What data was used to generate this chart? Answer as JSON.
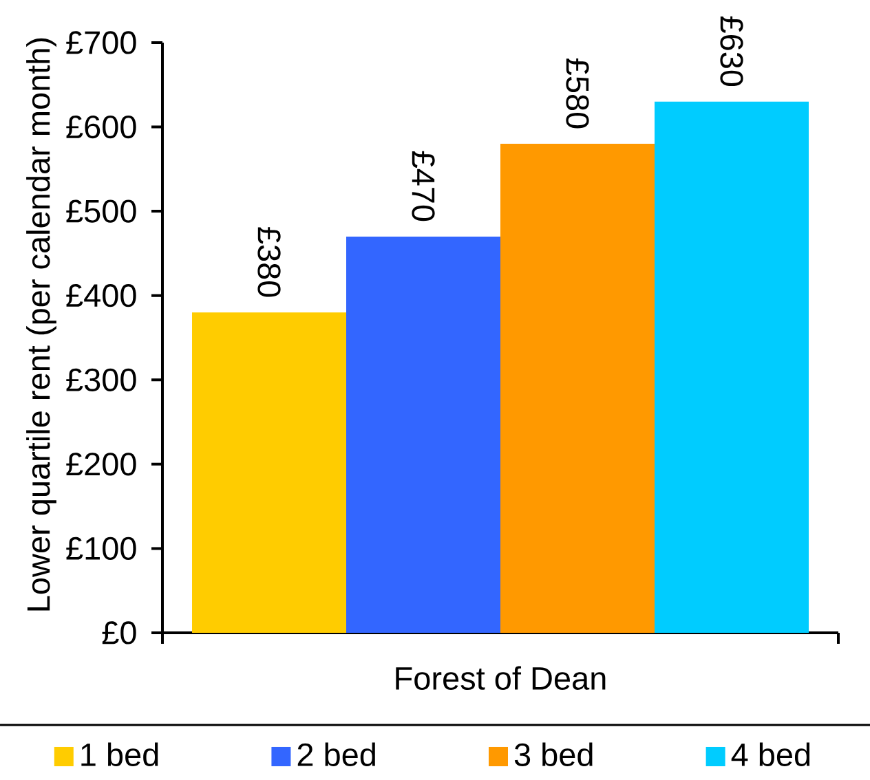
{
  "chart_data": {
    "type": "bar",
    "categories": [
      "Forest of Dean"
    ],
    "series": [
      {
        "name": "1 bed",
        "color": "#ffcc00",
        "values": [
          380
        ],
        "value_labels": [
          "£380"
        ]
      },
      {
        "name": "2 bed",
        "color": "#3366ff",
        "values": [
          470
        ],
        "value_labels": [
          "£470"
        ]
      },
      {
        "name": "3 bed",
        "color": "#ff9900",
        "values": [
          580
        ],
        "value_labels": [
          "£580"
        ]
      },
      {
        "name": "4 bed",
        "color": "#00ccff",
        "values": [
          630
        ],
        "value_labels": [
          "£630"
        ]
      }
    ],
    "ylabel": "Lower quartile rent (per calendar month)",
    "ylim": [
      0,
      700
    ],
    "yticks": [
      {
        "value": 0,
        "label": "£0"
      },
      {
        "value": 100,
        "label": "£100"
      },
      {
        "value": 200,
        "label": "£200"
      },
      {
        "value": 300,
        "label": "£300"
      },
      {
        "value": 400,
        "label": "£400"
      },
      {
        "value": 500,
        "label": "£500"
      },
      {
        "value": 600,
        "label": "£600"
      },
      {
        "value": 700,
        "label": "£700"
      }
    ],
    "legend": "bottom"
  }
}
